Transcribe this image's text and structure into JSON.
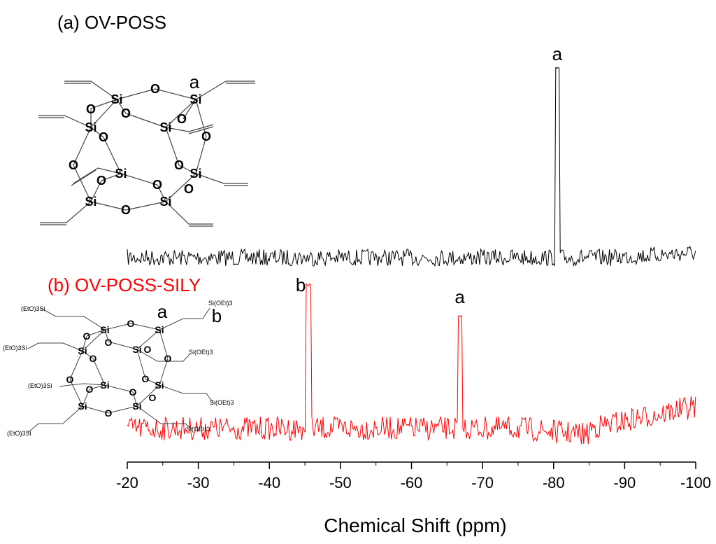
{
  "chart_data": {
    "type": "line",
    "xlabel": "Chemical Shift (ppm)",
    "ylabel": "",
    "xlim": [
      -20,
      -100
    ],
    "x_ticks": [
      -20,
      -30,
      -40,
      -50,
      -60,
      -70,
      -80,
      -90,
      -100
    ],
    "x_tick_labels": [
      "-20",
      "-30",
      "-40",
      "-50",
      "-60",
      "-70",
      "-80",
      "-90",
      "-100"
    ],
    "grid": false,
    "series": [
      {
        "name": "(a) OV-POSS",
        "color": "#000000",
        "peaks": [
          {
            "x": -80.5,
            "label": "a",
            "relative_height": 1.0
          }
        ]
      },
      {
        "name": "(b) OV-POSS-SILY",
        "color": "#ff0000",
        "peaks": [
          {
            "x": -45.5,
            "label": "b",
            "relative_height": 1.0
          },
          {
            "x": -66.8,
            "label": "a",
            "relative_height": 0.78
          }
        ]
      }
    ]
  },
  "structures": {
    "a": {
      "si": "Si",
      "o": "O",
      "site_label": "a"
    },
    "b": {
      "si": "Si",
      "o": "O",
      "site_label_a": "a",
      "site_label_b": "b",
      "substituents": [
        "(EtO)3Si",
        "(EtO)3Si",
        "(EtO)3Si",
        "(EtO)3Si",
        "Si(OEt)3",
        "Si(OEt)3",
        "Si(OEt)3",
        "Si(OEt)3"
      ]
    }
  }
}
